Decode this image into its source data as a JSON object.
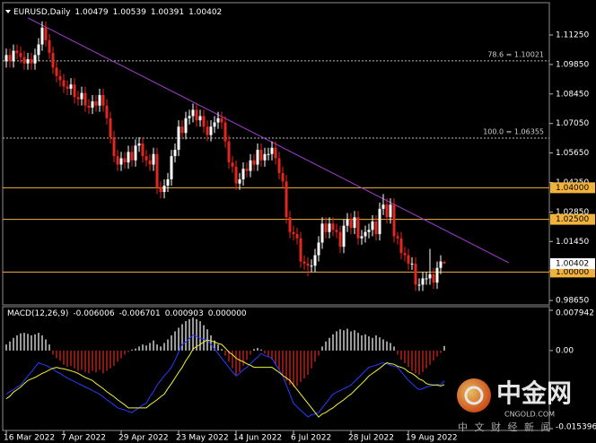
{
  "chart_data": {
    "type": "candlestick",
    "title": "EURUSD,Daily",
    "categories": [
      "16 Mar 2022",
      null,
      null,
      null,
      null,
      null,
      null,
      null,
      null,
      null,
      null,
      null,
      null,
      null,
      null,
      null,
      "7 Apr 2022",
      null,
      null,
      null,
      null,
      null,
      null,
      null,
      null,
      null,
      null,
      null,
      null,
      null,
      null,
      null,
      "29 Apr 2022",
      null,
      null,
      null,
      null,
      null,
      null,
      null,
      null,
      null,
      null,
      null,
      null,
      null,
      null,
      null,
      "23 May 2022",
      null,
      null,
      null,
      null,
      null,
      null,
      null,
      null,
      null,
      null,
      null,
      null,
      null,
      null,
      null,
      "14 Jun 2022",
      null,
      null,
      null,
      null,
      null,
      null,
      null,
      null,
      null,
      null,
      null,
      null,
      null,
      null,
      null,
      "6 Jul 2022",
      null,
      null,
      null,
      null,
      null,
      null,
      null,
      null,
      null,
      null,
      null,
      null,
      null,
      null,
      null,
      "28 Jul 2022",
      null,
      null,
      null,
      null,
      null,
      null,
      null,
      null,
      null,
      null,
      null,
      null,
      null,
      null,
      null,
      "19 Aug 2022",
      null,
      null,
      null,
      null,
      null,
      null,
      null,
      null,
      null,
      null
    ],
    "open": [
      1.1,
      1.103,
      1.1,
      1.105,
      1.104,
      1.102,
      1.099,
      1.101,
      1.099,
      1.103,
      1.108,
      1.116,
      1.11,
      1.104,
      1.097,
      1.093,
      1.091,
      1.088,
      1.087,
      1.089,
      1.083,
      1.082,
      1.085,
      1.079,
      1.078,
      1.081,
      1.079,
      1.084,
      1.079,
      1.073,
      1.064,
      1.055,
      1.051,
      1.054,
      1.052,
      1.057,
      1.053,
      1.06,
      1.061,
      1.055,
      1.053,
      1.051,
      1.056,
      1.04,
      1.038,
      1.041,
      1.044,
      1.055,
      1.058,
      1.069,
      1.066,
      1.073,
      1.074,
      1.077,
      1.072,
      1.074,
      1.069,
      1.065,
      1.069,
      1.071,
      1.073,
      1.071,
      1.062,
      1.052,
      1.05,
      1.042,
      1.044,
      1.049,
      1.048,
      1.053,
      1.051,
      1.058,
      1.053,
      1.056,
      1.056,
      1.059,
      1.054,
      1.047,
      1.043,
      1.026,
      1.019,
      1.018,
      1.016,
      1.005,
      1.004,
      1.003,
      1.003,
      1.008,
      1.014,
      1.023,
      1.019,
      1.023,
      1.02,
      1.019,
      1.012,
      1.022,
      1.025,
      1.021,
      1.026,
      1.016,
      1.017,
      1.019,
      1.02,
      1.024,
      1.018,
      1.03,
      1.032,
      1.026,
      1.032,
      1.017,
      1.016,
      1.009,
      1.008,
      1.004,
      1.004,
      0.994,
      0.994,
      0.997,
      0.997,
      0.999,
      0.995,
      1.002,
      1.00479
    ],
    "high": [
      1.106,
      1.106,
      1.108,
      1.108,
      1.107,
      1.105,
      1.104,
      1.104,
      1.106,
      1.111,
      1.119,
      1.119,
      1.113,
      1.107,
      1.1,
      1.096,
      1.094,
      1.091,
      1.092,
      1.092,
      1.086,
      1.088,
      1.088,
      1.082,
      1.084,
      1.084,
      1.087,
      1.087,
      1.082,
      1.076,
      1.067,
      1.058,
      1.057,
      1.057,
      1.06,
      1.06,
      1.063,
      1.064,
      1.064,
      1.058,
      1.056,
      1.059,
      1.059,
      1.043,
      1.044,
      1.047,
      1.058,
      1.061,
      1.072,
      1.072,
      1.076,
      1.077,
      1.08,
      1.08,
      1.077,
      1.077,
      1.072,
      1.072,
      1.074,
      1.076,
      1.076,
      1.074,
      1.065,
      1.055,
      1.053,
      1.047,
      1.052,
      1.052,
      1.056,
      1.056,
      1.061,
      1.061,
      1.059,
      1.059,
      1.062,
      1.062,
      1.057,
      1.05,
      1.046,
      1.029,
      1.022,
      1.021,
      1.019,
      1.008,
      1.007,
      1.006,
      1.011,
      1.017,
      1.026,
      1.026,
      1.026,
      1.026,
      1.023,
      1.022,
      1.025,
      1.028,
      1.028,
      1.029,
      1.029,
      1.02,
      1.022,
      1.023,
      1.027,
      1.027,
      1.033,
      1.037,
      1.035,
      1.035,
      1.035,
      1.019,
      1.019,
      1.012,
      1.011,
      1.007,
      1.007,
      0.997,
      1.0,
      1.0,
      1.011,
      1.002,
      1.005,
      1.008,
      1.00539
    ],
    "low": [
      1.097,
      1.097,
      1.097,
      1.101,
      1.099,
      1.096,
      1.096,
      1.096,
      1.096,
      1.1,
      1.105,
      1.107,
      1.101,
      1.094,
      1.09,
      1.088,
      1.085,
      1.084,
      1.084,
      1.08,
      1.079,
      1.079,
      1.076,
      1.075,
      1.075,
      1.076,
      1.076,
      1.076,
      1.07,
      1.061,
      1.052,
      1.048,
      1.048,
      1.049,
      1.049,
      1.05,
      1.05,
      1.057,
      1.052,
      1.05,
      1.048,
      1.048,
      1.037,
      1.035,
      1.035,
      1.038,
      1.041,
      1.052,
      1.055,
      1.063,
      1.063,
      1.07,
      1.071,
      1.069,
      1.069,
      1.066,
      1.062,
      1.062,
      1.066,
      1.068,
      1.068,
      1.059,
      1.049,
      1.047,
      1.039,
      1.039,
      1.041,
      1.045,
      1.045,
      1.048,
      1.048,
      1.05,
      1.05,
      1.053,
      1.053,
      1.051,
      1.044,
      1.04,
      1.023,
      1.016,
      1.015,
      1.013,
      1.002,
      1.001,
      0.998,
      1.0,
      1.0,
      1.005,
      1.011,
      1.016,
      1.016,
      1.017,
      1.016,
      1.009,
      1.009,
      1.019,
      1.018,
      1.018,
      1.013,
      1.013,
      1.014,
      1.016,
      1.017,
      1.015,
      1.015,
      1.027,
      1.023,
      1.023,
      1.014,
      1.013,
      1.006,
      1.005,
      1.001,
      1.001,
      0.991,
      0.991,
      0.991,
      0.994,
      0.994,
      0.992,
      0.992,
      0.999,
      1.00391
    ],
    "close": [
      1.103,
      1.1,
      1.105,
      1.104,
      1.102,
      1.099,
      1.101,
      1.099,
      1.103,
      1.108,
      1.116,
      1.11,
      1.104,
      1.097,
      1.093,
      1.091,
      1.088,
      1.087,
      1.089,
      1.083,
      1.082,
      1.085,
      1.079,
      1.078,
      1.081,
      1.079,
      1.084,
      1.079,
      1.073,
      1.064,
      1.055,
      1.051,
      1.054,
      1.052,
      1.057,
      1.053,
      1.06,
      1.061,
      1.055,
      1.053,
      1.051,
      1.056,
      1.04,
      1.038,
      1.041,
      1.044,
      1.055,
      1.058,
      1.069,
      1.066,
      1.073,
      1.074,
      1.077,
      1.072,
      1.074,
      1.069,
      1.065,
      1.069,
      1.071,
      1.073,
      1.071,
      1.062,
      1.052,
      1.05,
      1.042,
      1.044,
      1.049,
      1.048,
      1.053,
      1.051,
      1.058,
      1.053,
      1.056,
      1.056,
      1.059,
      1.054,
      1.047,
      1.043,
      1.026,
      1.019,
      1.018,
      1.016,
      1.005,
      1.004,
      1.003,
      1.003,
      1.008,
      1.014,
      1.023,
      1.019,
      1.023,
      1.02,
      1.019,
      1.012,
      1.022,
      1.025,
      1.021,
      1.026,
      1.016,
      1.017,
      1.019,
      1.02,
      1.024,
      1.018,
      1.03,
      1.032,
      1.026,
      1.032,
      1.017,
      1.016,
      1.009,
      1.008,
      1.004,
      1.004,
      0.994,
      0.994,
      0.997,
      0.997,
      0.999,
      0.995,
      1.002,
      1.005,
      1.00402
    ],
    "up_color": "#ffffff",
    "down_color": "#e3261f",
    "ylim": [
      0.98441,
      1.12569
    ],
    "yticks": [
      {
        "value": 1.1125,
        "label": "1.11250"
      },
      {
        "value": 1.0985,
        "label": "1.09850"
      },
      {
        "value": 1.0845,
        "label": "1.08450"
      },
      {
        "value": 1.0705,
        "label": "1.07050"
      },
      {
        "value": 1.0565,
        "label": "1.05650"
      },
      {
        "value": 1.0425,
        "label": "1.04250"
      },
      {
        "value": 1.0285,
        "label": "1.02850"
      },
      {
        "value": 1.0145,
        "label": "1.01450"
      },
      {
        "value": 1.0005,
        "label": "1.00050"
      },
      {
        "value": 0.9865,
        "label": "0.98650"
      }
    ],
    "hline_color": "#f2b33d",
    "hlines": [
      {
        "value": 1.04,
        "label": "1.04000"
      },
      {
        "value": 1.025,
        "label": "1.02500"
      },
      {
        "value": 1.0,
        "label": "1.00000"
      }
    ],
    "fib_levels": [
      {
        "value": 1.10021,
        "label": "78.6 = 1.10021"
      },
      {
        "value": 1.06355,
        "label": "100.0 = 1.06355"
      }
    ],
    "trendline": {
      "start": [
        6,
        1.1206
      ],
      "end": [
        140,
        1.0044
      ],
      "color": "#a23fd0"
    },
    "macd": {
      "title": "MACD(12,26,9)",
      "ylim": [
        -0.015396,
        0.007942
      ],
      "yticks": [
        0.007942,
        {
          "value": 0,
          "label": "0.00"
        },
        -0.015396
      ],
      "level": {
        "value": 0,
        "label": "0.000000"
      },
      "main": {
        "color": "#2a3cff",
        "values": [
          -0.0086,
          -0.0081,
          -0.0077,
          -0.0072,
          -0.0068,
          -0.0059,
          -0.005,
          -0.0042,
          -0.0033,
          -0.0024,
          -0.0027,
          -0.0029,
          -0.0033,
          -0.0036,
          -0.0042,
          -0.0045,
          -0.005,
          -0.0054,
          -0.0058,
          -0.0061,
          -0.0065,
          -0.0068,
          -0.0072,
          -0.0075,
          -0.0079,
          -0.0082,
          -0.0086,
          -0.0091,
          -0.0097,
          -0.0102,
          -0.0107,
          -0.0113,
          -0.0115,
          -0.0117,
          -0.012,
          -0.0122,
          -0.0117,
          -0.0113,
          -0.0107,
          -0.0104,
          -0.0091,
          -0.0081,
          -0.0068,
          -0.0059,
          -0.005,
          -0.0042,
          -0.0033,
          -0.0019,
          -0.0003,
          0.0012,
          0.0017,
          0.0024,
          0.003,
          0.0028,
          0.0024,
          0.0022,
          0.0021,
          0.0012,
          0.0003,
          -0.0006,
          -0.0015,
          -0.0024,
          -0.0033,
          -0.0042,
          -0.005,
          -0.0045,
          -0.0038,
          -0.0033,
          -0.0026,
          -0.0019,
          -0.0013,
          -0.0006,
          -0.001,
          -0.0012,
          -0.0015,
          -0.0027,
          -0.0038,
          -0.005,
          -0.0068,
          -0.0086,
          -0.0104,
          -0.0111,
          -0.0118,
          -0.0124,
          -0.0131,
          -0.0127,
          -0.0125,
          -0.0122,
          -0.0113,
          -0.0104,
          -0.0095,
          -0.0086,
          -0.0082,
          -0.0079,
          -0.0075,
          -0.0072,
          -0.0068,
          -0.0061,
          -0.0054,
          -0.0047,
          -0.004,
          -0.0033,
          -0.0031,
          -0.0029,
          -0.0026,
          -0.0024,
          -0.0026,
          -0.0029,
          -0.0031,
          -0.0033,
          -0.0042,
          -0.005,
          -0.0059,
          -0.0065,
          -0.0072,
          -0.0077,
          -0.0075,
          -0.0072,
          -0.007,
          -0.0068,
          -0.0067,
          -0.0067,
          -0.006006
        ]
      },
      "signal": {
        "color": "#f2f23a",
        "values": [
          -0.0095,
          -0.009,
          -0.0082,
          -0.0077,
          -0.0072,
          -0.0065,
          -0.0059,
          -0.0056,
          -0.0053,
          -0.0049,
          -0.0045,
          -0.0042,
          -0.0038,
          -0.0035,
          -0.0033,
          -0.0035,
          -0.0036,
          -0.0038,
          -0.004,
          -0.0042,
          -0.0045,
          -0.0049,
          -0.0053,
          -0.0056,
          -0.0059,
          -0.0065,
          -0.007,
          -0.0075,
          -0.0081,
          -0.0086,
          -0.0091,
          -0.0097,
          -0.0102,
          -0.0107,
          -0.0113,
          -0.0113,
          -0.0113,
          -0.0113,
          -0.0113,
          -0.0113,
          -0.0107,
          -0.0102,
          -0.0097,
          -0.0091,
          -0.0086,
          -0.0075,
          -0.0065,
          -0.0054,
          -0.0043,
          -0.0033,
          -0.002,
          -0.001,
          0.0003,
          0.0008,
          0.0012,
          0.0017,
          0.0021,
          0.0019,
          0.0017,
          0.0014,
          0.0012,
          0.0005,
          -0.0003,
          -0.0008,
          -0.0015,
          -0.0019,
          -0.0022,
          -0.0026,
          -0.0029,
          -0.0033,
          -0.0033,
          -0.0033,
          -0.0033,
          -0.0033,
          -0.0033,
          -0.0038,
          -0.0043,
          -0.0049,
          -0.0054,
          -0.0059,
          -0.0068,
          -0.0077,
          -0.0086,
          -0.0095,
          -0.0104,
          -0.0113,
          -0.0122,
          -0.0131,
          -0.0125,
          -0.0122,
          -0.0117,
          -0.0113,
          -0.0107,
          -0.0102,
          -0.0097,
          -0.0091,
          -0.0086,
          -0.0079,
          -0.0072,
          -0.0065,
          -0.0058,
          -0.005,
          -0.0045,
          -0.004,
          -0.0035,
          -0.0029,
          -0.0024,
          -0.0026,
          -0.0027,
          -0.0031,
          -0.0033,
          -0.0036,
          -0.0042,
          -0.0045,
          -0.005,
          -0.0056,
          -0.0059,
          -0.0065,
          -0.0067,
          -0.0068,
          -0.0068,
          -0.007,
          -0.006701
        ]
      },
      "histogram": {
        "up_color": "#ffffff",
        "down_color": "#e3261f",
        "values": [
          0.0012,
          0.0018,
          0.0025,
          0.003,
          0.0034,
          0.0035,
          0.0033,
          0.003,
          0.0032,
          0.0035,
          0.003,
          0.0022,
          0.0012,
          -0.0008,
          -0.0015,
          -0.002,
          -0.0028,
          -0.0032,
          -0.003,
          -0.0035,
          -0.004,
          -0.0038,
          -0.0042,
          -0.0045,
          -0.004,
          -0.0043,
          -0.0038,
          -0.0045,
          -0.004,
          -0.0035,
          -0.003,
          -0.0022,
          -0.0015,
          -0.0008,
          -0.0003,
          0.0002,
          0.0004,
          0.0008,
          0.0012,
          0.001,
          0.0015,
          0.002,
          0.0012,
          0.0008,
          0.0015,
          0.0022,
          0.003,
          0.0038,
          0.0045,
          0.0052,
          0.0058,
          0.0062,
          0.0065,
          0.0062,
          0.0058,
          0.005,
          0.0042,
          0.003,
          0.002,
          0.0012,
          0.0003,
          -0.001,
          -0.0022,
          -0.0035,
          -0.0048,
          -0.0042,
          -0.003,
          -0.0018,
          -0.0008,
          0.0003,
          0.0005,
          0.0002,
          -0.0006,
          -0.0012,
          -0.0018,
          -0.0028,
          -0.0038,
          -0.0048,
          -0.006,
          -0.0068,
          -0.0072,
          -0.007,
          -0.0062,
          -0.0055,
          -0.0048,
          -0.0035,
          -0.0022,
          -0.001,
          0.0008,
          0.0018,
          0.0025,
          0.0032,
          0.0038,
          0.0042,
          0.004,
          0.0043,
          0.0038,
          0.004,
          0.0035,
          0.003,
          0.0032,
          0.0028,
          0.0025,
          0.003,
          0.0026,
          0.0022,
          0.0018,
          0.0015,
          0.0008,
          -0.0008,
          -0.0018,
          -0.0025,
          -0.0032,
          -0.004,
          -0.0045,
          -0.0048,
          -0.0042,
          -0.0035,
          -0.0028,
          -0.002,
          -0.0012,
          -0.0005,
          0.000903
        ]
      }
    },
    "watermark": {
      "name": "中金网",
      "site": "CNGOLD.COM",
      "tagline": "中 文 财 经 新 闻"
    }
  }
}
